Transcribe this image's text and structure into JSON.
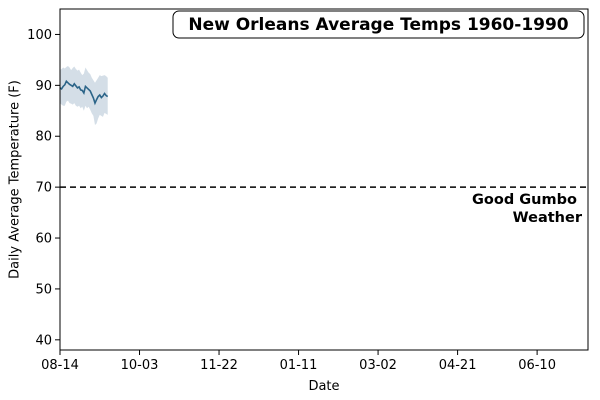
{
  "chart_data": {
    "type": "line",
    "title": "New Orleans Average Temps 1960-1990",
    "xlabel": "Date",
    "ylabel": "Daily Average Temperature (F)",
    "x_ticks": [
      "08-14",
      "10-03",
      "11-22",
      "01-11",
      "03-02",
      "04-21",
      "06-10"
    ],
    "xlim": [
      "08-14",
      "07-12"
    ],
    "ylim": [
      38,
      105
    ],
    "y_ticks": [
      40,
      50,
      60,
      70,
      80,
      90,
      100
    ],
    "grid": false,
    "series": [
      {
        "color": "#2b6488",
        "band_color": "#9fb6c9",
        "x": [
          "08-14",
          "08-15",
          "08-16",
          "08-17",
          "08-18",
          "08-19",
          "08-20",
          "08-21",
          "08-22",
          "08-23",
          "08-24",
          "08-25",
          "08-26",
          "08-27",
          "08-28",
          "08-29",
          "08-30",
          "08-31",
          "09-01",
          "09-02",
          "09-03",
          "09-04",
          "09-05",
          "09-06",
          "09-07",
          "09-08",
          "09-09",
          "09-10",
          "09-11",
          "09-12",
          "09-13"
        ],
        "values": [
          89.5,
          89.3,
          89.8,
          90.1,
          90.8,
          90.5,
          90.2,
          90.0,
          89.8,
          90.3,
          89.9,
          89.5,
          89.7,
          89.1,
          89.0,
          88.5,
          89.8,
          89.5,
          89.2,
          88.9,
          88.2,
          87.5,
          86.5,
          87.2,
          87.8,
          88.1,
          87.6,
          87.9,
          88.4,
          88.0,
          87.8
        ],
        "band_upper": [
          93.0,
          93.2,
          93.5,
          93.3,
          93.6,
          93.8,
          93.5,
          93.0,
          93.4,
          93.7,
          93.2,
          92.9,
          93.1,
          92.5,
          92.0,
          92.3,
          93.5,
          93.0,
          92.5,
          92.2,
          91.5,
          91.0,
          90.5,
          91.0,
          91.5,
          92.0,
          91.8,
          91.9,
          92.0,
          91.8,
          91.5
        ],
        "band_lower": [
          86.5,
          86.2,
          86.0,
          86.0,
          86.8,
          87.0,
          86.5,
          86.4,
          86.2,
          86.5,
          86.0,
          85.8,
          86.0,
          85.5,
          85.8,
          85.0,
          86.0,
          85.5,
          85.8,
          85.2,
          84.5,
          84.0,
          82.2,
          82.5,
          83.5,
          84.2,
          84.0,
          83.8,
          84.6,
          84.4,
          84.2
        ]
      }
    ],
    "reference_line": {
      "y": 70,
      "style": "dashed",
      "label_lines": [
        "Good Gumbo",
        "Weather"
      ]
    }
  }
}
